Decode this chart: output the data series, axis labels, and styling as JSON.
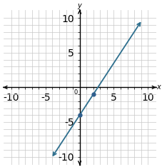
{
  "x_range": [
    -10,
    10
  ],
  "y_range": [
    -10,
    10
  ],
  "points": [
    [
      0,
      -4
    ],
    [
      2,
      -1
    ]
  ],
  "line_color": "#2e6f8e",
  "point_color": "#2e5f8e",
  "slope": 1.5,
  "intercept": -4,
  "xlabel": "x",
  "ylabel": "y",
  "grid_color": "#c8c8c8",
  "figsize": [
    2.28,
    2.34
  ],
  "dpi": 100,
  "line_x1": -4.0,
  "line_x2": 9.0
}
